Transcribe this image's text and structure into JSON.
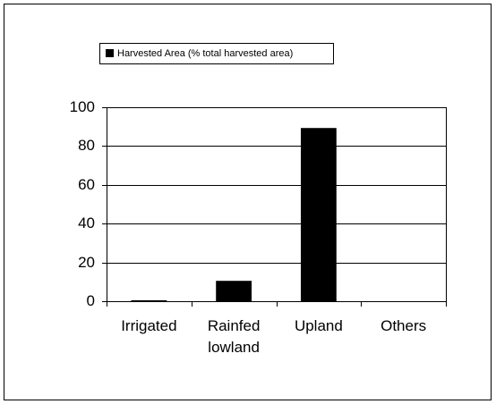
{
  "chart_data": {
    "type": "bar",
    "legend_label": "Harvested Area (% total harvested area)",
    "categories": [
      "Irrigated",
      "Rainfed lowland",
      "Upland",
      "Others"
    ],
    "series": [
      {
        "name": "Harvested Area (% total harvested area)",
        "color": "#000000",
        "values": [
          0.5,
          10.5,
          89.3,
          0
        ]
      }
    ],
    "ylim": [
      0,
      100
    ],
    "yticks": [
      0,
      20,
      40,
      60,
      80,
      100
    ],
    "grid": true,
    "legend": "top-left"
  }
}
